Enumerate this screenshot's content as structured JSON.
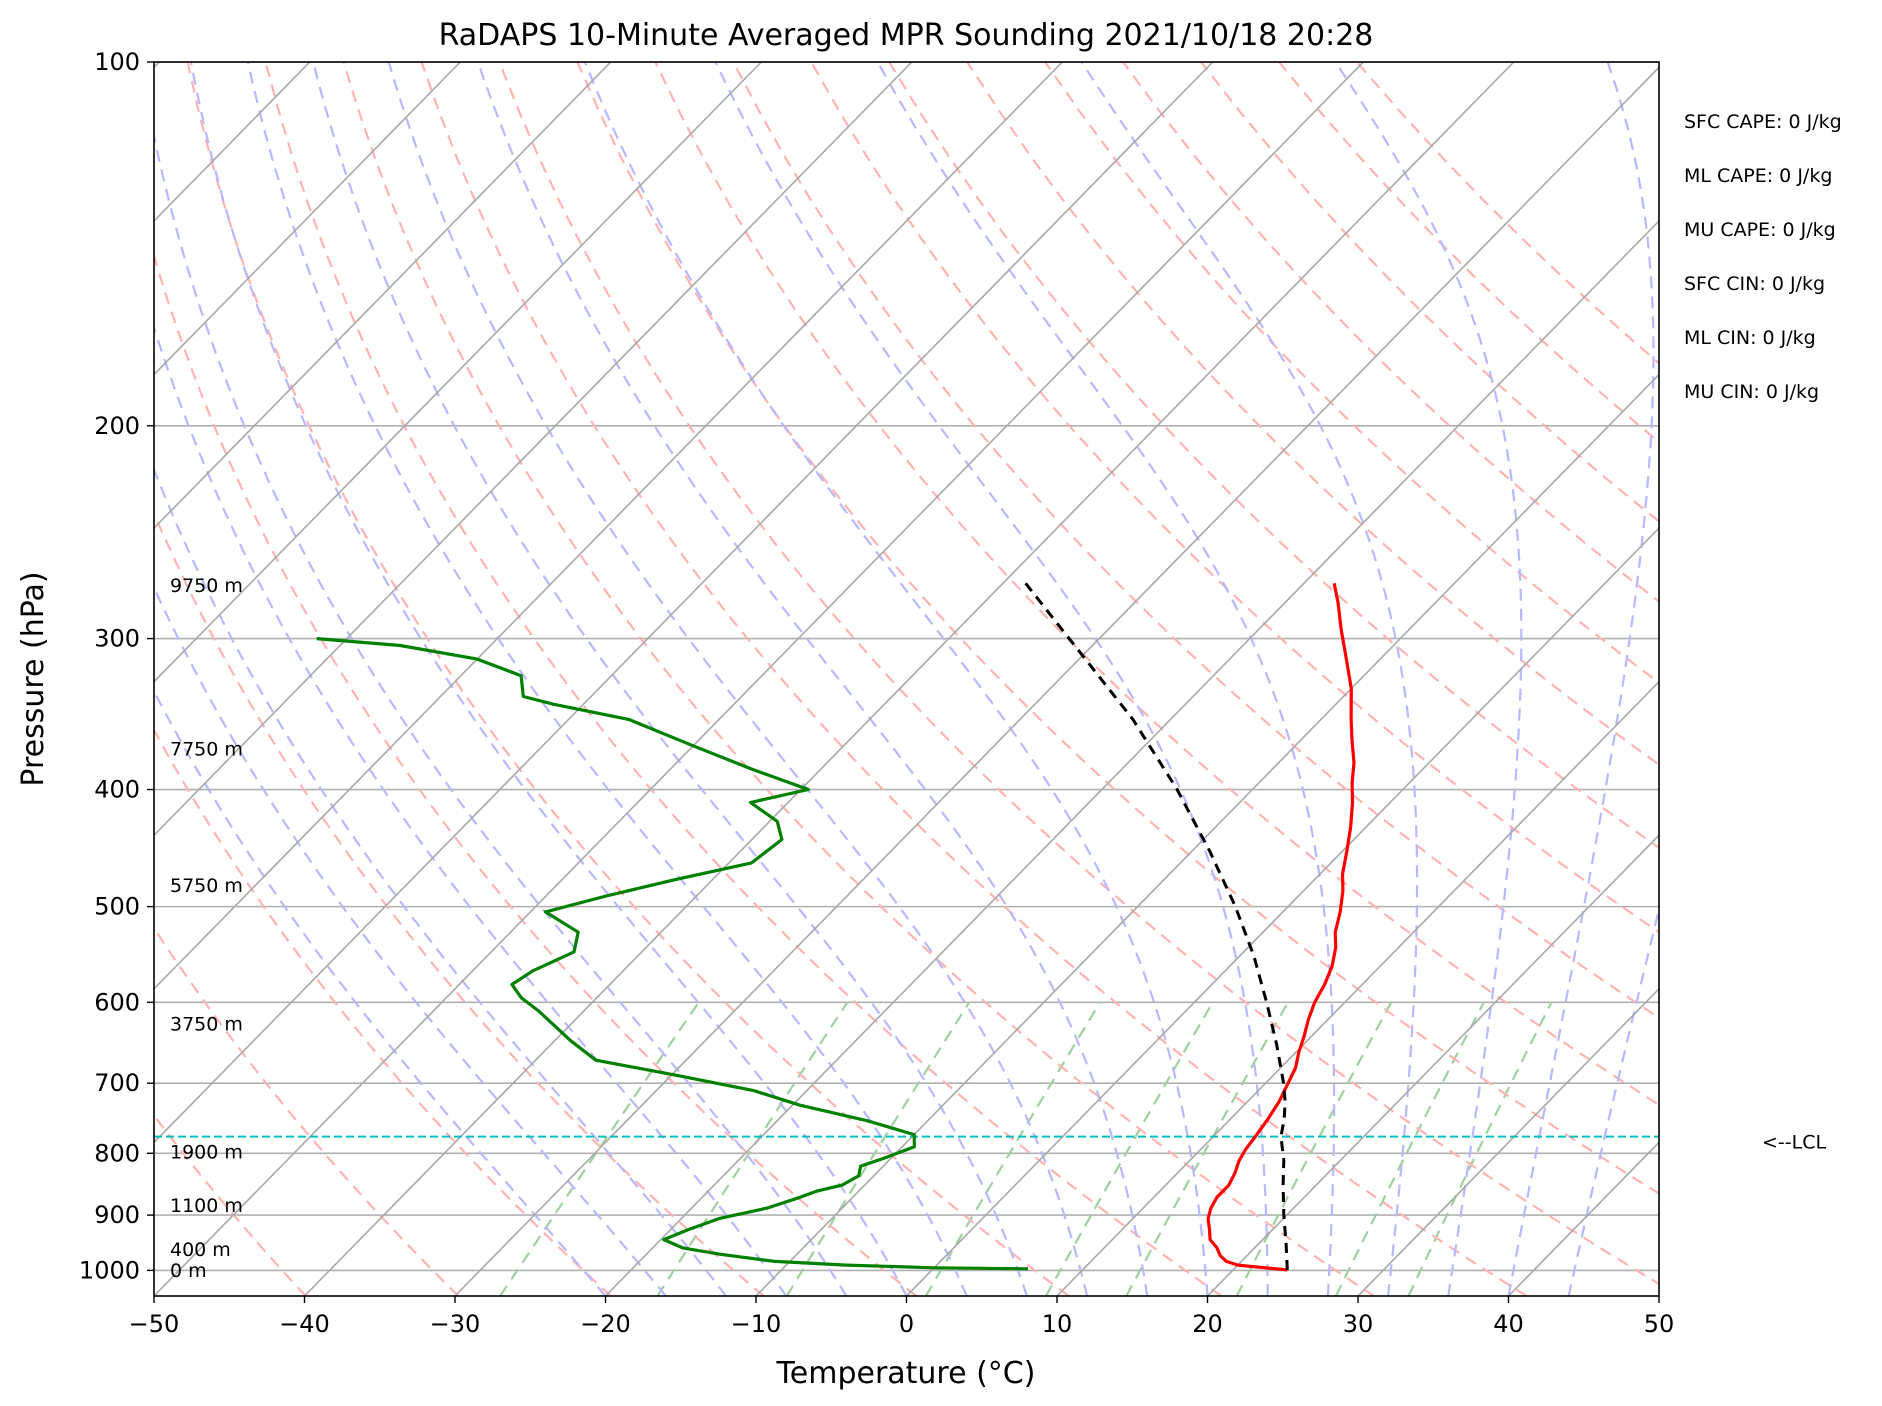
{
  "chart_data": {
    "type": "line",
    "subtype": "skew-t log-p sounding",
    "title": "RaDAPS 10-Minute Averaged MPR Sounding 2021/10/18 20:28",
    "xlabel": "Temperature (°C)",
    "ylabel": "Pressure (hPa)",
    "xlim": [
      -50,
      50
    ],
    "ylim": [
      1050,
      100
    ],
    "y_scale": "log",
    "grid": true,
    "x_ticks": [
      "−50",
      "−40",
      "−30",
      "−20",
      "−10",
      "0",
      "10",
      "20",
      "30",
      "40",
      "50"
    ],
    "y_ticks": [
      {
        "p": 100,
        "label": "100"
      },
      {
        "p": 200,
        "label": "200"
      },
      {
        "p": 300,
        "label": "300"
      },
      {
        "p": 400,
        "label": "400"
      },
      {
        "p": 500,
        "label": "500"
      },
      {
        "p": 600,
        "label": "600"
      },
      {
        "p": 700,
        "label": "700"
      },
      {
        "p": 800,
        "label": "800"
      },
      {
        "p": 900,
        "label": "900"
      },
      {
        "p": 1000,
        "label": "1000"
      }
    ],
    "series": [
      {
        "key": "temperature",
        "color": "#ff0000",
        "points": [
          [
            999,
            23.6
          ],
          [
            995,
            22
          ],
          [
            990,
            20
          ],
          [
            983,
            19
          ],
          [
            972,
            18.2
          ],
          [
            958,
            17.5
          ],
          [
            943,
            16.5
          ],
          [
            925,
            15.8
          ],
          [
            906,
            15
          ],
          [
            888,
            14.5
          ],
          [
            870,
            14.2
          ],
          [
            850,
            14.2
          ],
          [
            830,
            13.8
          ],
          [
            812,
            13.3
          ],
          [
            795,
            13
          ],
          [
            775,
            12.8
          ],
          [
            750,
            12.5
          ],
          [
            725,
            12.1
          ],
          [
            700,
            11.5
          ],
          [
            680,
            11
          ],
          [
            660,
            10.2
          ],
          [
            640,
            9.5
          ],
          [
            620,
            8.7
          ],
          [
            600,
            8
          ],
          [
            580,
            7.5
          ],
          [
            560,
            6.8
          ],
          [
            540,
            5.8
          ],
          [
            525,
            4.8
          ],
          [
            505,
            3.8
          ],
          [
            485,
            2.6
          ],
          [
            470,
            1.5
          ],
          [
            450,
            0.3
          ],
          [
            430,
            -1
          ],
          [
            410,
            -2.5
          ],
          [
            395,
            -3.8
          ],
          [
            380,
            -5
          ],
          [
            365,
            -6.5
          ],
          [
            350,
            -8
          ],
          [
            330,
            -10
          ],
          [
            310,
            -12.5
          ],
          [
            295,
            -14.5
          ],
          [
            280,
            -16.5
          ],
          [
            270,
            -18
          ]
        ]
      },
      {
        "key": "dewpoint",
        "color": "#008000",
        "points": [
          [
            997,
            6.3
          ],
          [
            995,
            0
          ],
          [
            990,
            -6
          ],
          [
            983,
            -11
          ],
          [
            970,
            -15
          ],
          [
            958,
            -18
          ],
          [
            943,
            -19.8
          ],
          [
            925,
            -18.8
          ],
          [
            906,
            -17.5
          ],
          [
            888,
            -15
          ],
          [
            870,
            -13.5
          ],
          [
            860,
            -12.8
          ],
          [
            850,
            -11.5
          ],
          [
            835,
            -11
          ],
          [
            820,
            -11.5
          ],
          [
            808,
            -10.5
          ],
          [
            790,
            -9.2
          ],
          [
            772,
            -10
          ],
          [
            752,
            -14
          ],
          [
            730,
            -19.5
          ],
          [
            710,
            -23.5
          ],
          [
            690,
            -29.5
          ],
          [
            670,
            -36
          ],
          [
            645,
            -39
          ],
          [
            610,
            -43
          ],
          [
            595,
            -45
          ],
          [
            580,
            -46.5
          ],
          [
            565,
            -46
          ],
          [
            545,
            -44.5
          ],
          [
            525,
            -45.5
          ],
          [
            505,
            -49
          ],
          [
            490,
            -46
          ],
          [
            475,
            -42.5
          ],
          [
            460,
            -38.5
          ],
          [
            440,
            -38
          ],
          [
            425,
            -39.5
          ],
          [
            410,
            -42.5
          ],
          [
            400,
            -39.5
          ],
          [
            385,
            -44.5
          ],
          [
            368,
            -50
          ],
          [
            350,
            -56
          ],
          [
            340,
            -62
          ],
          [
            335,
            -64.5
          ],
          [
            322,
            -66
          ],
          [
            312,
            -70
          ],
          [
            304,
            -76
          ],
          [
            300,
            -82
          ]
        ]
      },
      {
        "key": "parcel",
        "color": "#000000",
        "points": [
          [
            999,
            23.6
          ],
          [
            950,
            21.8
          ],
          [
            900,
            19.8
          ],
          [
            850,
            17.8
          ],
          [
            810,
            16.2
          ],
          [
            775,
            14.5
          ],
          [
            750,
            13.6
          ],
          [
            725,
            12.5
          ],
          [
            700,
            11.2
          ],
          [
            650,
            8.2
          ],
          [
            600,
            4.8
          ],
          [
            550,
            1
          ],
          [
            500,
            -3.5
          ],
          [
            450,
            -8.8
          ],
          [
            400,
            -15
          ],
          [
            350,
            -22.5
          ],
          [
            300,
            -32
          ],
          [
            270,
            -38.5
          ]
        ]
      }
    ],
    "lcl": {
      "pressure": 775,
      "label": "<--LCL",
      "color": "#00bfbf"
    },
    "height_labels": [
      {
        "text": "9750 m",
        "p": 271
      },
      {
        "text": "7750 m",
        "p": 370
      },
      {
        "text": "5750 m",
        "p": 480
      },
      {
        "text": "3750 m",
        "p": 625
      },
      {
        "text": "1900 m",
        "p": 797
      },
      {
        "text": "1100 m",
        "p": 883
      },
      {
        "text": "400 m",
        "p": 960
      },
      {
        "text": "0 m",
        "p": 999
      }
    ],
    "indices": [
      "SFC CAPE: 0 J/kg",
      "ML CAPE: 0 J/kg",
      "MU CAPE: 0 J/kg",
      "SFC CIN: 0 J/kg",
      "ML CIN: 0 J/kg",
      "MU CIN: 0 J/kg"
    ],
    "reference_lines": {
      "isotherm_color": "#a8a8a8",
      "dry_adiabat_color": "#ffb3b3",
      "moist_adiabat_color": "#b8b8ff",
      "mixing_ratio_color": "#9fd09f"
    }
  }
}
